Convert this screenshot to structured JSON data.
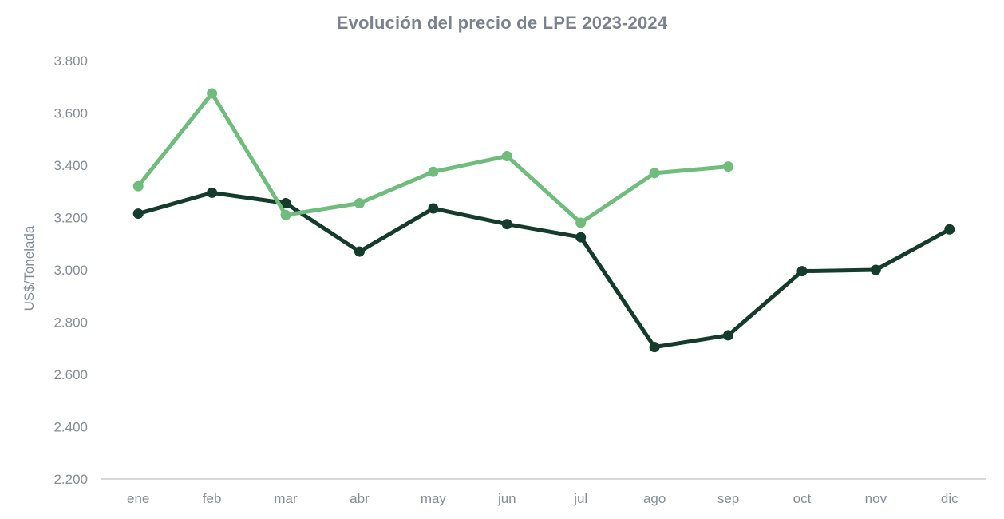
{
  "page": {
    "background": "#ffffff"
  },
  "chart": {
    "title": "Evolución del precio de LPE 2023-2024",
    "y_axis_title": "US$/Tonelada"
  },
  "chart_data": {
    "type": "line",
    "title": "Evolución del precio de LPE 2023-2024",
    "xlabel": "",
    "ylabel": "US$/Tonelada",
    "categories": [
      "ene",
      "feb",
      "mar",
      "abr",
      "may",
      "jun",
      "jul",
      "ago",
      "sep",
      "oct",
      "nov",
      "dic"
    ],
    "ylim": [
      2200,
      3800
    ],
    "y_ticks": [
      {
        "label": "3.800",
        "value": 3800
      },
      {
        "label": "3.600",
        "value": 3600
      },
      {
        "label": "3.400",
        "value": 3400
      },
      {
        "label": "3.200",
        "value": 3200
      },
      {
        "label": "3.000",
        "value": 3000
      },
      {
        "label": "2.800",
        "value": 2800
      },
      {
        "label": "2.600",
        "value": 2600
      },
      {
        "label": "2.400",
        "value": 2400
      },
      {
        "label": "2.200",
        "value": 2200
      }
    ],
    "grid": false,
    "legend_position": "none",
    "series": [
      {
        "id": "dark-green",
        "name": "verde oscuro",
        "color": "#143b2b",
        "values": [
          3215,
          3295,
          3255,
          3070,
          3235,
          3175,
          3125,
          2705,
          2750,
          2995,
          3000,
          3155
        ]
      },
      {
        "id": "light-green",
        "name": "verde claro",
        "color": "#6fbc7c",
        "values": [
          3320,
          3675,
          3210,
          3255,
          3375,
          3435,
          3180,
          3370,
          3395,
          null,
          null,
          null
        ]
      }
    ],
    "styles": {
      "axis_line_color": "#d9d9d9",
      "tick_text_color": "#868d97",
      "title_color": "#7b828e",
      "line_width": 5,
      "marker_radius": 6.5,
      "axis_line_width": 2
    }
  }
}
